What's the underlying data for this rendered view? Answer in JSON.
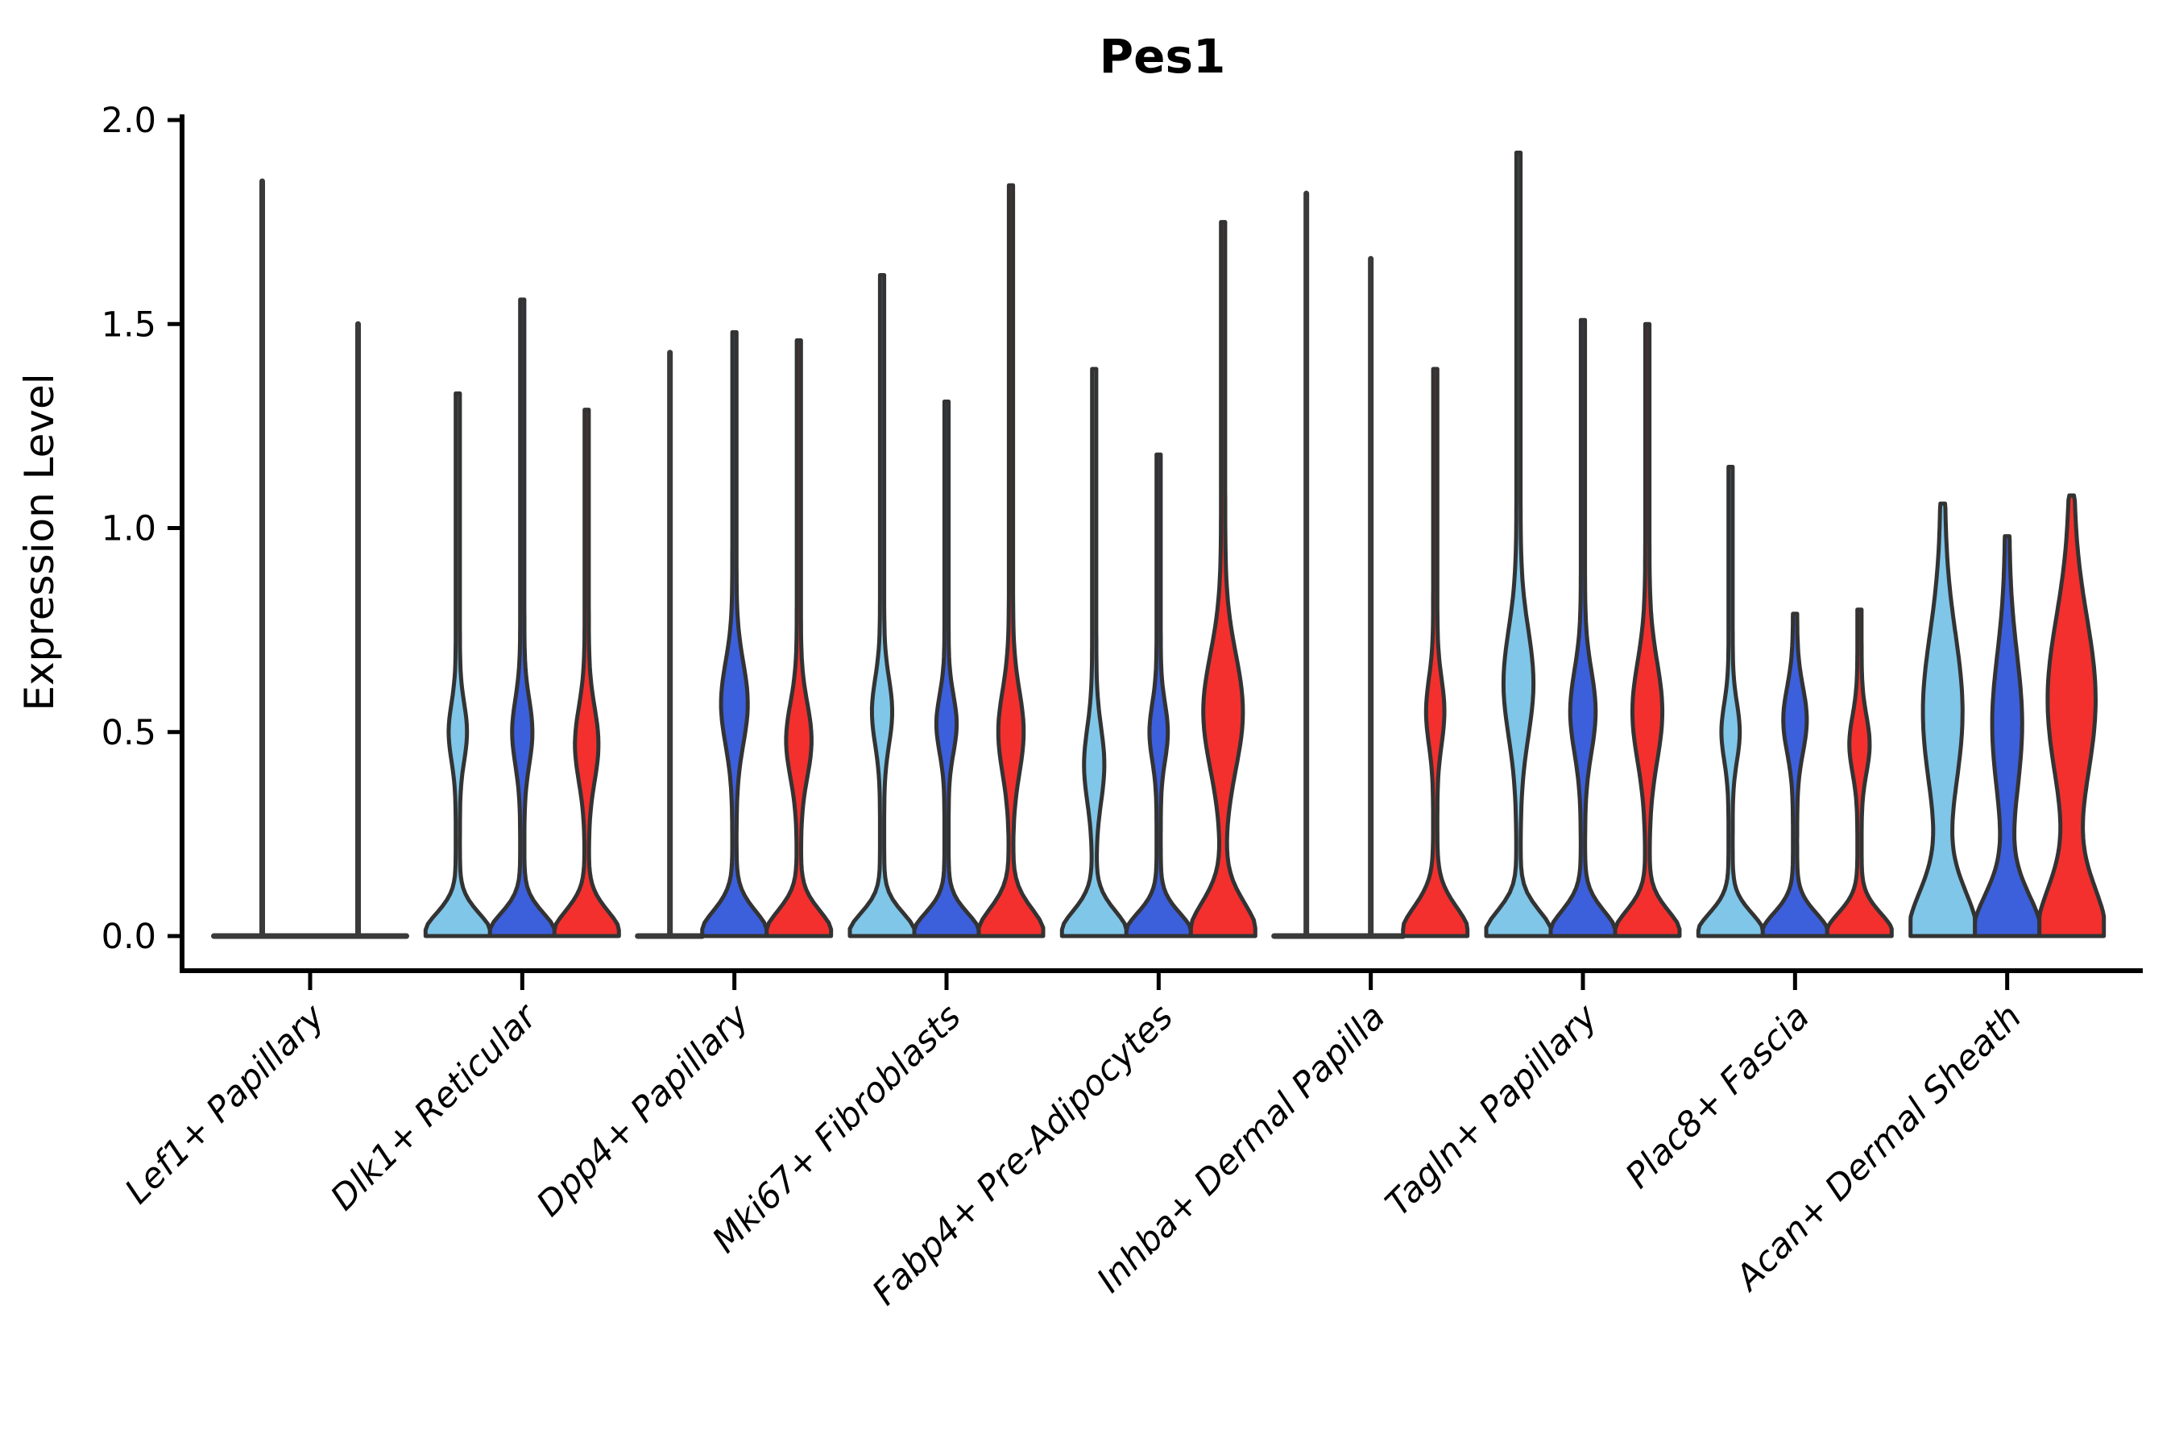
{
  "chart_data": {
    "type": "violin",
    "title": "Pes1",
    "ylabel": "Expression Level",
    "xlabel": "",
    "ylim": [
      0,
      2
    ],
    "yticks": [
      {
        "value": 0.0,
        "label": "0.0"
      },
      {
        "value": 0.5,
        "label": "0.5"
      },
      {
        "value": 1.0,
        "label": "1.0"
      },
      {
        "value": 1.5,
        "label": "1.5"
      },
      {
        "value": 2.0,
        "label": "2.0"
      }
    ],
    "categories": [
      "Lef1+ Papillary",
      "Dlk1+ Reticular",
      "Dpp4+ Papillary",
      "Mki67+ Fibroblasts",
      "Fabp4+ Pre-Adipocytes",
      "Inhba+ Dermal Papilla",
      "Tagln+ Papillary",
      "Plac8+ Fascia",
      "Acan+ Dermal Sheath"
    ],
    "series_colors": {
      "light_blue": "#7FC6E9",
      "dark_blue": "#3C5FDC",
      "red": "#F3302E",
      "outline": "#333333",
      "flat_line": "#3A3A3A"
    },
    "legend": "none",
    "grid": false,
    "groups": [
      {
        "category": "Lef1+ Papillary",
        "violins": [
          {
            "color": "flat",
            "max": 1.85,
            "flat": true
          },
          {
            "color": "flat",
            "max": 1.5,
            "flat": true
          }
        ]
      },
      {
        "category": "Dlk1+ Reticular",
        "violins": [
          {
            "color": "light_blue",
            "max": 1.33,
            "flat": false,
            "base_sigma": 0.055,
            "bulge_amp": 0.22,
            "bulge_center": 0.5,
            "bulge_sigma": 0.07
          },
          {
            "color": "dark_blue",
            "max": 1.56,
            "flat": false,
            "base_sigma": 0.055,
            "bulge_amp": 0.25,
            "bulge_center": 0.5,
            "bulge_sigma": 0.08
          },
          {
            "color": "red",
            "max": 1.29,
            "flat": false,
            "base_sigma": 0.06,
            "bulge_amp": 0.3,
            "bulge_center": 0.47,
            "bulge_sigma": 0.09
          }
        ]
      },
      {
        "category": "Dpp4+ Papillary",
        "violins": [
          {
            "color": "light_blue",
            "max": 1.43,
            "flat": true
          },
          {
            "color": "dark_blue",
            "max": 1.48,
            "flat": false,
            "base_sigma": 0.06,
            "bulge_amp": 0.35,
            "bulge_center": 0.57,
            "bulge_sigma": 0.1
          },
          {
            "color": "red",
            "max": 1.46,
            "flat": false,
            "base_sigma": 0.06,
            "bulge_amp": 0.33,
            "bulge_center": 0.48,
            "bulge_sigma": 0.09
          }
        ]
      },
      {
        "category": "Mki67+ Fibroblasts",
        "violins": [
          {
            "color": "light_blue",
            "max": 1.62,
            "flat": false,
            "base_sigma": 0.055,
            "bulge_amp": 0.25,
            "bulge_center": 0.55,
            "bulge_sigma": 0.08
          },
          {
            "color": "dark_blue",
            "max": 1.31,
            "flat": false,
            "base_sigma": 0.055,
            "bulge_amp": 0.25,
            "bulge_center": 0.52,
            "bulge_sigma": 0.07
          },
          {
            "color": "red",
            "max": 1.84,
            "flat": false,
            "base_sigma": 0.065,
            "bulge_amp": 0.33,
            "bulge_center": 0.5,
            "bulge_sigma": 0.1
          }
        ]
      },
      {
        "category": "Fabp4+ Pre-Adipocytes",
        "violins": [
          {
            "color": "light_blue",
            "max": 1.39,
            "flat": false,
            "base_sigma": 0.06,
            "bulge_amp": 0.25,
            "bulge_center": 0.42,
            "bulge_sigma": 0.09
          },
          {
            "color": "dark_blue",
            "max": 1.18,
            "flat": false,
            "base_sigma": 0.055,
            "bulge_amp": 0.22,
            "bulge_center": 0.5,
            "bulge_sigma": 0.07
          },
          {
            "color": "red",
            "max": 1.75,
            "flat": false,
            "base_sigma": 0.08,
            "bulge_amp": 0.55,
            "bulge_center": 0.55,
            "bulge_sigma": 0.14
          }
        ]
      },
      {
        "category": "Inhba+ Dermal Papilla",
        "violins": [
          {
            "color": "flat",
            "max": 1.82,
            "flat": true
          },
          {
            "color": "flat",
            "max": 1.66,
            "flat": true
          },
          {
            "color": "red",
            "max": 1.39,
            "flat": false,
            "base_sigma": 0.07,
            "bulge_amp": 0.22,
            "bulge_center": 0.55,
            "bulge_sigma": 0.08
          }
        ]
      },
      {
        "category": "Tagln+ Papillary",
        "violins": [
          {
            "color": "light_blue",
            "max": 1.92,
            "flat": false,
            "base_sigma": 0.06,
            "bulge_amp": 0.4,
            "bulge_center": 0.62,
            "bulge_sigma": 0.13
          },
          {
            "color": "dark_blue",
            "max": 1.51,
            "flat": false,
            "base_sigma": 0.06,
            "bulge_amp": 0.33,
            "bulge_center": 0.55,
            "bulge_sigma": 0.1
          },
          {
            "color": "red",
            "max": 1.5,
            "flat": false,
            "base_sigma": 0.06,
            "bulge_amp": 0.4,
            "bulge_center": 0.55,
            "bulge_sigma": 0.12
          }
        ]
      },
      {
        "category": "Plac8+ Fascia",
        "violins": [
          {
            "color": "light_blue",
            "max": 1.15,
            "flat": false,
            "base_sigma": 0.055,
            "bulge_amp": 0.22,
            "bulge_center": 0.5,
            "bulge_sigma": 0.07
          },
          {
            "color": "dark_blue",
            "max": 0.79,
            "flat": false,
            "base_sigma": 0.055,
            "bulge_amp": 0.3,
            "bulge_center": 0.53,
            "bulge_sigma": 0.08
          },
          {
            "color": "red",
            "max": 0.8,
            "flat": false,
            "base_sigma": 0.055,
            "bulge_amp": 0.25,
            "bulge_center": 0.47,
            "bulge_sigma": 0.07
          }
        ]
      },
      {
        "category": "Acan+ Dermal Sheath",
        "violins": [
          {
            "color": "light_blue",
            "max": 1.06,
            "flat": false,
            "base_sigma": 0.11,
            "bulge_amp": 0.55,
            "bulge_center": 0.55,
            "bulge_sigma": 0.19
          },
          {
            "color": "dark_blue",
            "max": 0.98,
            "flat": false,
            "base_sigma": 0.1,
            "bulge_amp": 0.4,
            "bulge_center": 0.52,
            "bulge_sigma": 0.17
          },
          {
            "color": "red",
            "max": 1.08,
            "flat": false,
            "base_sigma": 0.12,
            "bulge_amp": 0.68,
            "bulge_center": 0.58,
            "bulge_sigma": 0.2
          }
        ]
      }
    ]
  }
}
